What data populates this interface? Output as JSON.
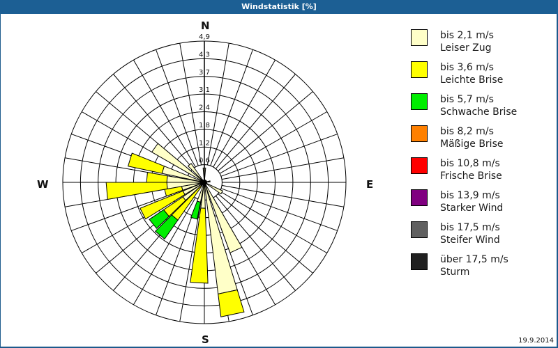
{
  "title": "Windstatistik [%]",
  "date": "19.9.2014",
  "compass": {
    "n": "N",
    "e": "E",
    "s": "S",
    "w": "W"
  },
  "legend": [
    {
      "range": "bis 2,1 m/s",
      "name": "Leiser Zug",
      "color": "#ffffc8"
    },
    {
      "range": "bis 3,6 m/s",
      "name": "Leichte Brise",
      "color": "#ffff00"
    },
    {
      "range": "bis 5,7 m/s",
      "name": "Schwache Brise",
      "color": "#00ee00"
    },
    {
      "range": "bis 8,2 m/s",
      "name": "Mäßige Brise",
      "color": "#ff8000"
    },
    {
      "range": "bis 10,8 m/s",
      "name": "Frische Brise",
      "color": "#ff0000"
    },
    {
      "range": "bis 13,9 m/s",
      "name": "Starker Wind",
      "color": "#800080"
    },
    {
      "range": "bis 17,5 m/s",
      "name": "Steifer Wind",
      "color": "#606060"
    },
    {
      "range": "über 17,5 m/s",
      "name": "Sturm",
      "color": "#202020"
    }
  ],
  "chart_data": {
    "type": "wind-rose",
    "title": "Windstatistik [%]",
    "radial_ticks": [
      "0,6",
      "1,2",
      "1,8",
      "2,4",
      "3,1",
      "3,7",
      "4,3",
      "4,9"
    ],
    "radial_max": 4.9,
    "sector_width_deg": 10,
    "series_names": [
      "bis 2,1 m/s",
      "bis 3,6 m/s",
      "bis 5,7 m/s",
      "bis 8,2 m/s",
      "bis 10,8 m/s",
      "bis 13,9 m/s",
      "bis 17,5 m/s",
      "über 17,5 m/s"
    ],
    "sectors": [
      {
        "dir": 0,
        "cum": [
          0.5
        ]
      },
      {
        "dir": 80,
        "cum": [
          0.2
        ]
      },
      {
        "dir": 120,
        "cum": [
          0.7
        ]
      },
      {
        "dir": 155,
        "cum": [
          2.6
        ]
      },
      {
        "dir": 168,
        "cum": [
          3.9,
          4.7
        ]
      },
      {
        "dir": 183,
        "cum": [
          0.9,
          3.5
        ]
      },
      {
        "dir": 196,
        "cum": [
          0.7,
          0.7,
          1.3
        ]
      },
      {
        "dir": 220,
        "cum": [
          0.0,
          1.6,
          2.4
        ]
      },
      {
        "dir": 231,
        "cum": [
          0.9,
          1.7,
          2.3
        ]
      },
      {
        "dir": 243,
        "cum": [
          0.8,
          2.4
        ]
      },
      {
        "dir": 255,
        "cum": [
          0.8,
          1.4
        ]
      },
      {
        "dir": 265,
        "cum": [
          1.3,
          3.4
        ]
      },
      {
        "dir": 275,
        "cum": [
          1.3,
          2.0
        ]
      },
      {
        "dir": 287,
        "cum": [
          1.5,
          2.7
        ]
      },
      {
        "dir": 305,
        "cum": [
          2.1
        ]
      },
      {
        "dir": 320,
        "cum": [
          0.8
        ]
      }
    ]
  }
}
